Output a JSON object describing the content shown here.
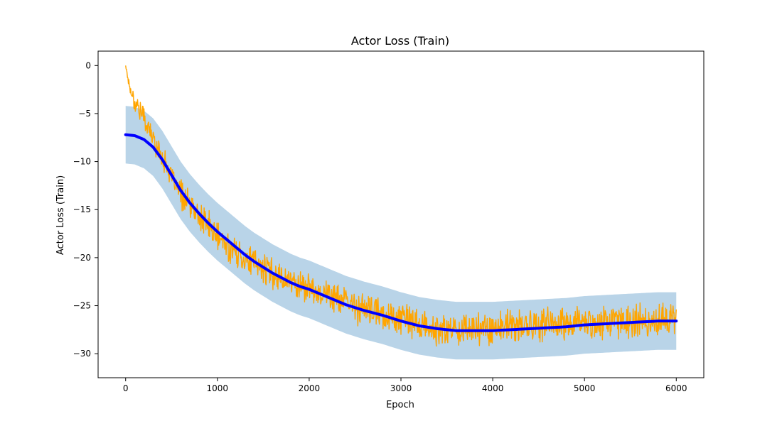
{
  "chart_data": {
    "type": "line",
    "title": "Actor Loss (Train)",
    "xlabel": "Epoch",
    "ylabel": "Actor Loss (Train)",
    "xlim": [
      -300,
      6300
    ],
    "ylim": [
      -32.5,
      1.5
    ],
    "xticks": [
      0,
      1000,
      2000,
      3000,
      4000,
      5000,
      6000
    ],
    "yticks": [
      0,
      -5,
      -10,
      -15,
      -20,
      -25,
      -30
    ],
    "grid": false,
    "legend": "none",
    "colors": {
      "raw": "#ffa500",
      "smoothed": "#0000ff",
      "band": "#b9d4e8"
    },
    "series": [
      {
        "role": "raw",
        "x": [
          0,
          50,
          100,
          150,
          200,
          250,
          300,
          350,
          400,
          450,
          500,
          600,
          700,
          800,
          900,
          1000,
          1200,
          1400,
          1600,
          1800,
          2000,
          2200,
          2400,
          2600,
          2800,
          3000,
          3200,
          3400,
          3600,
          3800,
          4000,
          4200,
          4400,
          4600,
          4800,
          5000,
          5200,
          5400,
          5600,
          5800,
          6000
        ],
        "values": [
          0.0,
          -2.5,
          -3.8,
          -4.5,
          -5.4,
          -6.6,
          -7.6,
          -8.7,
          -9.6,
          -10.4,
          -11.7,
          -13.3,
          -14.6,
          -15.8,
          -16.6,
          -17.9,
          -19.5,
          -20.6,
          -21.6,
          -22.5,
          -23.2,
          -23.8,
          -24.7,
          -25.4,
          -25.9,
          -26.3,
          -27.0,
          -27.7,
          -27.4,
          -27.3,
          -27.3,
          -27.2,
          -27.1,
          -27.0,
          -26.9,
          -26.7,
          -26.7,
          -26.6,
          -26.6,
          -26.5,
          -26.5
        ]
      },
      {
        "role": "smoothed",
        "x": [
          0,
          100,
          200,
          300,
          400,
          500,
          600,
          700,
          800,
          900,
          1000,
          1100,
          1200,
          1300,
          1400,
          1500,
          1600,
          1700,
          1800,
          1900,
          2000,
          2200,
          2400,
          2600,
          2800,
          3000,
          3200,
          3400,
          3600,
          3800,
          4000,
          4200,
          4400,
          4600,
          4800,
          5000,
          5200,
          5400,
          5600,
          5800,
          6000
        ],
        "values": [
          -7.2,
          -7.3,
          -7.7,
          -8.5,
          -9.8,
          -11.4,
          -13.0,
          -14.3,
          -15.4,
          -16.4,
          -17.3,
          -18.1,
          -18.9,
          -19.7,
          -20.4,
          -21.0,
          -21.6,
          -22.1,
          -22.6,
          -23.0,
          -23.3,
          -24.1,
          -24.9,
          -25.5,
          -26.0,
          -26.6,
          -27.1,
          -27.4,
          -27.6,
          -27.6,
          -27.6,
          -27.5,
          -27.4,
          -27.3,
          -27.2,
          -27.0,
          -26.9,
          -26.8,
          -26.7,
          -26.6,
          -26.6
        ]
      }
    ]
  }
}
